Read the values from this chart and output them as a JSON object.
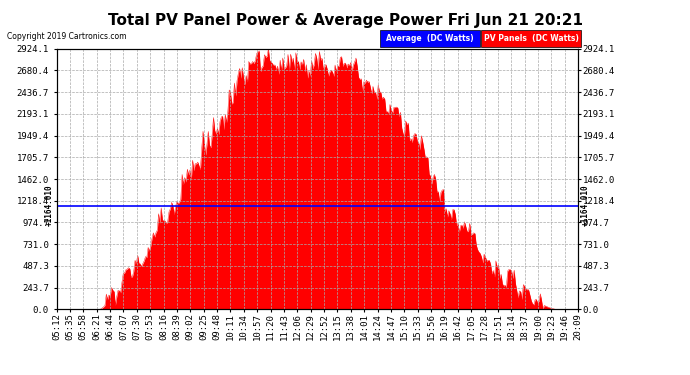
{
  "title": "Total PV Panel Power & Average Power Fri Jun 21 20:21",
  "copyright": "Copyright 2019 Cartronics.com",
  "average_value": 1164.01,
  "y_max": 2924.1,
  "y_min": 0.0,
  "y_ticks": [
    0.0,
    243.7,
    487.3,
    731.0,
    974.7,
    1218.4,
    1462.0,
    1705.7,
    1949.4,
    2193.1,
    2436.7,
    2680.4,
    2924.1
  ],
  "fill_color": "#FF0000",
  "line_color": "#FF0000",
  "avg_line_color": "#0000FF",
  "background_color": "#FFFFFF",
  "plot_bg_color": "#FFFFFF",
  "grid_color": "#AAAAAA",
  "title_fontsize": 11,
  "tick_fontsize": 6.5,
  "legend_avg_label": "Average  (DC Watts)",
  "legend_pv_label": "PV Panels  (DC Watts)",
  "avg_label_left": "+1164.010",
  "avg_label_right": "+1164.010",
  "tick_labels": [
    "05:12",
    "05:35",
    "05:58",
    "06:21",
    "06:44",
    "07:07",
    "07:30",
    "07:53",
    "08:16",
    "08:39",
    "09:02",
    "09:25",
    "09:48",
    "10:11",
    "10:34",
    "10:57",
    "11:20",
    "11:43",
    "12:06",
    "12:29",
    "12:52",
    "13:15",
    "13:38",
    "14:01",
    "14:24",
    "14:47",
    "15:10",
    "15:33",
    "15:56",
    "16:19",
    "16:42",
    "17:05",
    "17:28",
    "17:51",
    "18:14",
    "18:37",
    "19:00",
    "19:23",
    "19:46",
    "20:09"
  ]
}
